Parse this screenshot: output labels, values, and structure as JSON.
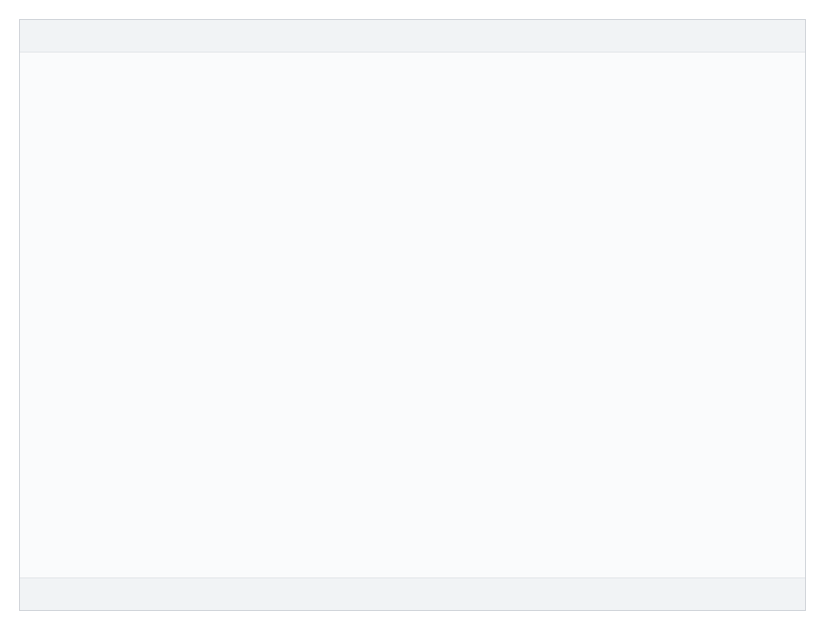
{
  "page": {
    "title": ""
  }
}
